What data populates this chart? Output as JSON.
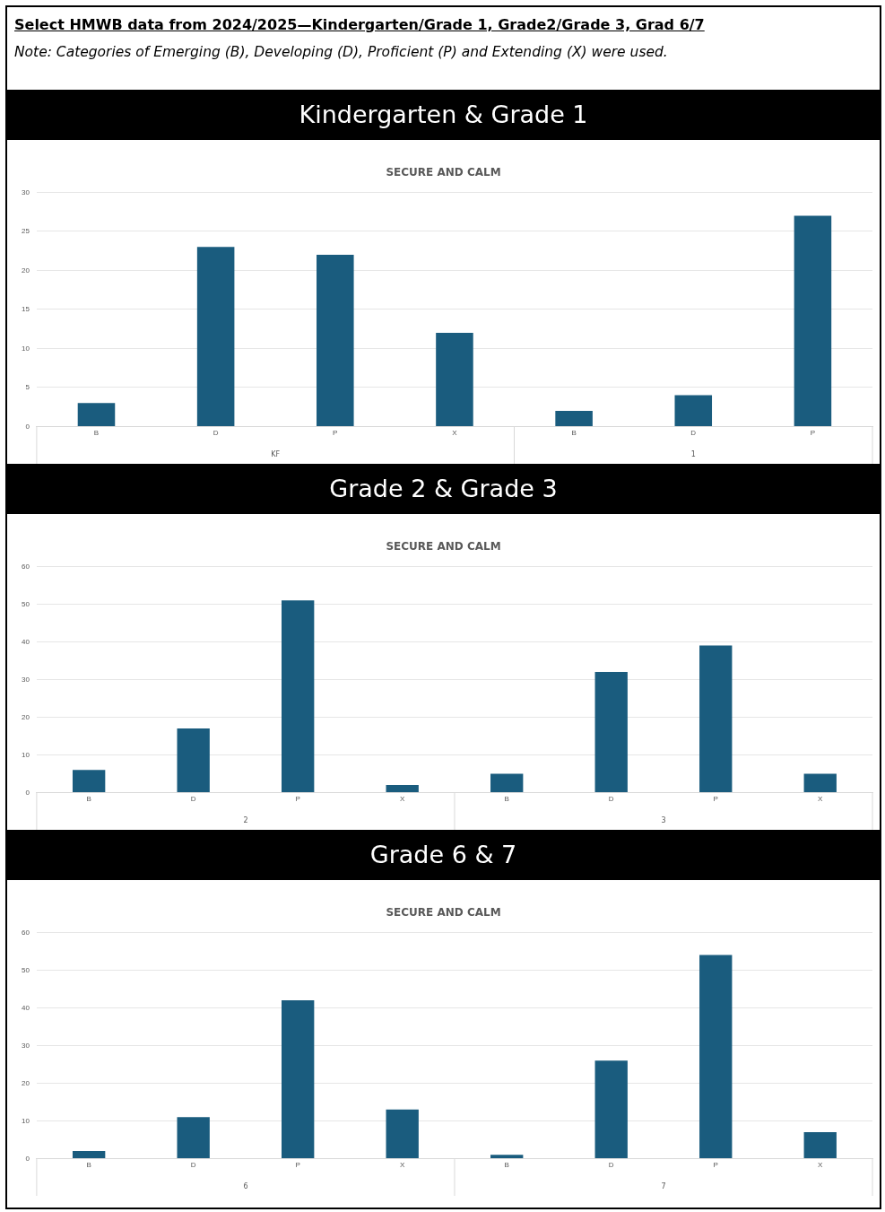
{
  "chart_data": [
    {
      "type": "bar",
      "title": "Kindergarten & Grade 1",
      "subtitle": "SECURE AND CALM",
      "categories": [
        "B",
        "D",
        "P",
        "X",
        "B",
        "D",
        "P"
      ],
      "values": [
        3,
        23,
        22,
        12,
        2,
        4,
        27
      ],
      "color": "#1a5c7e",
      "ylim": [
        0,
        30
      ],
      "yticks": [
        0,
        5,
        10,
        15,
        20,
        25,
        30
      ],
      "grid": "y",
      "legend": false,
      "annotations": [
        "Select HMWB data from 2024/2025—Kindergarten/Grade 1, Grade2/Grade 3, Grad 6/7",
        "Note: Categories of Emerging (B), Developing (D), Proficient (P) and Extending (X) were used.",
        "KF",
        "1"
      ]
    },
    {
      "type": "bar",
      "title": "Grade 2 & Grade 3",
      "subtitle": "SECURE AND CALM",
      "categories": [
        "B",
        "D",
        "P",
        "X",
        "B",
        "D",
        "P",
        "X"
      ],
      "values": [
        6,
        17,
        51,
        2,
        5,
        32,
        39,
        5
      ],
      "color": "#1a5c7e",
      "ylim": [
        0,
        60
      ],
      "yticks": [
        0,
        10,
        20,
        30,
        40,
        50,
        60
      ],
      "grid": "y",
      "legend": false,
      "annotations": [
        "2",
        "3"
      ]
    },
    {
      "type": "bar",
      "title": "Grade 6 & 7",
      "subtitle": "SECURE AND CALM",
      "categories": [
        "B",
        "D",
        "P",
        "X",
        "B",
        "D",
        "P",
        "X"
      ],
      "values": [
        2,
        11,
        42,
        13,
        1,
        26,
        54,
        7
      ],
      "color": "#1a5c7e",
      "ylim": [
        0,
        60
      ],
      "yticks": [
        0,
        10,
        20,
        30,
        40,
        50,
        60
      ],
      "grid": "y",
      "legend": false,
      "annotations": [
        "6",
        "7"
      ]
    }
  ]
}
